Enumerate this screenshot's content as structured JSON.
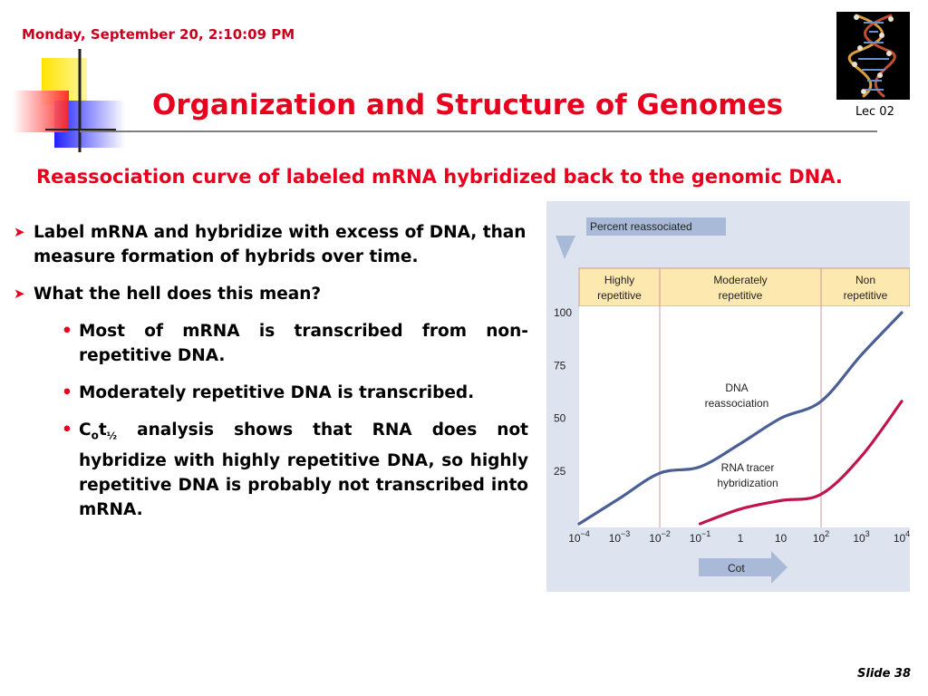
{
  "header": {
    "date": "Monday, September 20, 2:10:09 PM",
    "title": "Organization and Structure of Genomes",
    "lecture": "Lec 02"
  },
  "subtitle": "Reassociation curve of labeled mRNA hybridized back to the genomic DNA.",
  "bullets": [
    "Label mRNA and hybridize with excess of  DNA, than measure formation of hybrids over time.",
    "What the hell does this mean?"
  ],
  "sub_bullets": [
    "Most of mRNA is transcribed from non-repetitive DNA.",
    "Moderately repetitive DNA is transcribed."
  ],
  "cot_bullet": {
    "c": "C",
    "o": "o",
    "t": "t",
    "half": "½",
    "rest": " analysis shows that RNA does not hybridize with highly repetitive DNA, so highly repetitive DNA is probably not transcribed into mRNA."
  },
  "footer": {
    "slide": "Slide 38"
  },
  "chart_data": {
    "type": "line",
    "ylabel": "Percent reassociated",
    "xlabel": "Cot",
    "yticks": [
      100,
      75,
      50,
      25
    ],
    "xticks": [
      {
        "base": "10",
        "exp": "−4"
      },
      {
        "base": "10",
        "exp": "−3"
      },
      {
        "base": "10",
        "exp": "−2"
      },
      {
        "base": "10",
        "exp": "−1"
      },
      {
        "base": "1",
        "exp": ""
      },
      {
        "base": "10",
        "exp": ""
      },
      {
        "base": "10",
        "exp": "2"
      },
      {
        "base": "10",
        "exp": "3"
      },
      {
        "base": "10",
        "exp": "4"
      }
    ],
    "xscale": "log",
    "xlim": [
      0.0001,
      10000
    ],
    "ylim": [
      0,
      100
    ],
    "regions": [
      {
        "line1": "Highly",
        "line2": "repetitive"
      },
      {
        "line1": "Moderately",
        "line2": "repetitive"
      },
      {
        "line1": "Non",
        "line2": "repetitive"
      }
    ],
    "series": [
      {
        "name": "DNA reassociation",
        "label1": "DNA",
        "label2": "reassociation",
        "color": "#4a5f96",
        "x": [
          0.0001,
          0.001,
          0.01,
          0.1,
          1,
          10,
          100,
          1000,
          10000
        ],
        "y": [
          0,
          12,
          24,
          27,
          38,
          50,
          58,
          80,
          100
        ]
      },
      {
        "name": "RNA tracer hybridization",
        "label1": "RNA tracer",
        "label2": "hybridization",
        "color": "#c0144c",
        "x": [
          0.1,
          1,
          10,
          100,
          1000,
          10000
        ],
        "y": [
          0,
          7,
          11,
          14,
          32,
          58
        ]
      }
    ],
    "colors": {
      "region_header": "#fde9b0",
      "plot_bg": "#ffffff",
      "arrow": "#a9b9d8"
    }
  }
}
